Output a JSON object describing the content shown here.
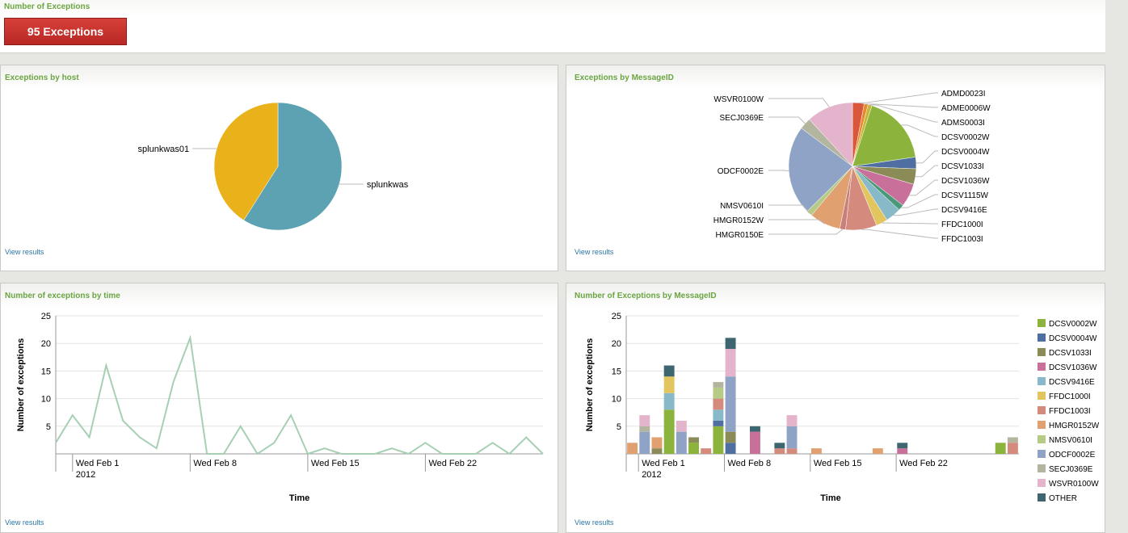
{
  "header": {
    "title": "Number of Exceptions",
    "badge": "95 Exceptions"
  },
  "panels": {
    "host": {
      "title": "Exceptions by host",
      "view_results": "View results"
    },
    "msgid_pie": {
      "title": "Exceptions by MessageID",
      "view_results": "View results"
    },
    "time": {
      "title": "Number of exceptions by time",
      "view_results": "View results"
    },
    "msgid_bar": {
      "title": "Number of Exceptions by MessageID",
      "view_results": "View results"
    }
  },
  "chart_data": [
    {
      "type": "pie",
      "title": "Exceptions by host",
      "labels": [
        "splunkwas",
        "splunkwas01"
      ],
      "values": [
        59,
        41
      ],
      "colors": [
        "#5da2b2",
        "#eab21a"
      ]
    },
    {
      "type": "pie",
      "title": "Exceptions by MessageID",
      "labels": [
        "ADMD0023I",
        "ADME0006W",
        "ADMS0003I",
        "DCSV0002W",
        "DCSV0004W",
        "DCSV1033I",
        "DCSV1036W",
        "DCSV1115W",
        "DCSV9416E",
        "FFDC1000I",
        "FFDC1003I",
        "HMGR0150E",
        "HMGR0152W",
        "NMSV0610I",
        "ODCF0002E",
        "SECJ0369E",
        "WSVR0100W"
      ],
      "values": [
        3,
        1,
        1,
        18,
        3,
        4,
        6,
        1.5,
        4,
        3,
        8,
        1.5,
        8,
        1.5,
        23,
        3,
        12
      ],
      "colors": [
        "#d9573a",
        "#e8892e",
        "#c7b53a",
        "#8cb43c",
        "#4f6fa3",
        "#8b8b57",
        "#c8709a",
        "#4a9a7a",
        "#88b9c8",
        "#e3c560",
        "#d48a7c",
        "#c9807a",
        "#e0a070",
        "#b6cb86",
        "#8ea3c6",
        "#b4b59e",
        "#e4b4cc"
      ]
    },
    {
      "type": "line",
      "title": "Number of exceptions by time",
      "xlabel": "Time",
      "ylabel": "Number of exceptions",
      "ylim": [
        0,
        25
      ],
      "yticks": [
        5,
        10,
        15,
        20,
        25
      ],
      "xticks": [
        "Wed Feb 1",
        "Wed Feb 8",
        "Wed Feb 15",
        "Wed Feb 22"
      ],
      "xsub": "2012",
      "x": [
        "Jan 31",
        "Feb 1",
        "Feb 2",
        "Feb 3",
        "Feb 4",
        "Feb 5",
        "Feb 6",
        "Feb 7",
        "Feb 8",
        "Feb 9",
        "Feb 10",
        "Feb 11",
        "Feb 12",
        "Feb 13",
        "Feb 14",
        "Feb 15",
        "Feb 16",
        "Feb 17",
        "Feb 18",
        "Feb 19",
        "Feb 20",
        "Feb 21",
        "Feb 22",
        "Feb 23",
        "Feb 24",
        "Feb 25",
        "Feb 26",
        "Feb 27",
        "Feb 28",
        "Feb 29"
      ],
      "values": [
        2,
        7,
        3,
        16,
        6,
        3,
        1,
        13,
        21,
        0,
        0,
        5,
        0,
        2,
        7,
        0,
        1,
        0,
        0,
        0,
        1,
        0,
        2,
        0,
        0,
        0,
        2,
        0,
        3,
        0
      ],
      "color": "#a6d0b4"
    },
    {
      "type": "bar",
      "stacked": true,
      "title": "Number of Exceptions by MessageID",
      "xlabel": "Time",
      "ylabel": "Number of exceptions",
      "ylim": [
        0,
        25
      ],
      "yticks": [
        5,
        10,
        15,
        20,
        25
      ],
      "xticks": [
        "Wed Feb 1",
        "Wed Feb 8",
        "Wed Feb 15",
        "Wed Feb 22"
      ],
      "xsub": "2012",
      "legend_position": "right",
      "series": [
        {
          "name": "DCSV0002W",
          "color": "#8cb43c",
          "values": [
            0,
            0,
            0,
            8,
            0,
            2,
            0,
            5,
            0,
            0,
            0,
            0,
            0,
            0,
            0,
            0,
            0,
            0,
            0,
            0,
            0,
            0,
            0,
            0,
            0,
            0,
            0,
            0,
            0,
            0,
            2,
            0
          ]
        },
        {
          "name": "DCSV0004W",
          "color": "#4f6fa3",
          "values": [
            0,
            0,
            0,
            0,
            0,
            0,
            0,
            1,
            2,
            0,
            0,
            0,
            0,
            0,
            0,
            0,
            0,
            0,
            0,
            0,
            0,
            0,
            0,
            0,
            0,
            0,
            0,
            0,
            0,
            0,
            0,
            0
          ]
        },
        {
          "name": "DCSV1033I",
          "color": "#8b8b57",
          "values": [
            0,
            0,
            1,
            0,
            0,
            1,
            0,
            0,
            2,
            0,
            0,
            0,
            0,
            0,
            0,
            0,
            0,
            0,
            0,
            0,
            0,
            0,
            0,
            0,
            0,
            0,
            0,
            0,
            0,
            0,
            0,
            0
          ]
        },
        {
          "name": "DCSV1036W",
          "color": "#c8709a",
          "values": [
            0,
            0,
            0,
            0,
            0,
            0,
            0,
            0,
            0,
            0,
            4,
            0,
            0,
            0,
            0,
            0,
            0,
            0,
            0,
            0,
            0,
            0,
            1,
            0,
            0,
            0,
            0,
            0,
            0,
            0,
            0,
            0
          ]
        },
        {
          "name": "DCSV9416E",
          "color": "#88b9c8",
          "values": [
            0,
            0,
            0,
            3,
            0,
            0,
            0,
            2,
            0,
            0,
            0,
            0,
            0,
            0,
            0,
            0,
            0,
            0,
            0,
            0,
            0,
            0,
            0,
            0,
            0,
            0,
            0,
            0,
            0,
            0,
            0,
            0
          ]
        },
        {
          "name": "FFDC1000I",
          "color": "#e3c560",
          "values": [
            0,
            0,
            0,
            3,
            0,
            0,
            0,
            0,
            0,
            0,
            0,
            0,
            0,
            0,
            0,
            0,
            0,
            0,
            0,
            0,
            0,
            0,
            0,
            0,
            0,
            0,
            0,
            0,
            0,
            0,
            0,
            0
          ]
        },
        {
          "name": "FFDC1003I",
          "color": "#d48a7c",
          "values": [
            0,
            0,
            0,
            0,
            0,
            0,
            1,
            2,
            0,
            0,
            0,
            0,
            1,
            1,
            0,
            0,
            0,
            0,
            0,
            0,
            0,
            0,
            0,
            0,
            0,
            0,
            0,
            0,
            0,
            0,
            0,
            2
          ]
        },
        {
          "name": "HMGR0152W",
          "color": "#e0a070",
          "values": [
            2,
            0,
            2,
            0,
            0,
            0,
            0,
            0,
            0,
            0,
            0,
            0,
            0,
            0,
            0,
            1,
            0,
            0,
            0,
            0,
            1,
            0,
            0,
            0,
            0,
            0,
            0,
            0,
            0,
            0,
            0,
            0
          ]
        },
        {
          "name": "NMSV0610I",
          "color": "#b6cb86",
          "values": [
            0,
            0,
            0,
            0,
            0,
            0,
            0,
            2,
            0,
            0,
            0,
            0,
            0,
            0,
            0,
            0,
            0,
            0,
            0,
            0,
            0,
            0,
            0,
            0,
            0,
            0,
            0,
            0,
            0,
            0,
            0,
            0
          ]
        },
        {
          "name": "ODCF0002E",
          "color": "#8ea3c6",
          "values": [
            0,
            4,
            0,
            0,
            4,
            0,
            0,
            0,
            10,
            0,
            0,
            0,
            0,
            4,
            0,
            0,
            0,
            0,
            0,
            0,
            0,
            0,
            0,
            0,
            0,
            0,
            0,
            0,
            0,
            0,
            0,
            0
          ]
        },
        {
          "name": "SECJ0369E",
          "color": "#b4b59e",
          "values": [
            0,
            1,
            0,
            0,
            0,
            0,
            0,
            1,
            0,
            0,
            0,
            0,
            0,
            0,
            0,
            0,
            0,
            0,
            0,
            0,
            0,
            0,
            0,
            0,
            0,
            0,
            0,
            0,
            0,
            0,
            0,
            1
          ]
        },
        {
          "name": "WSVR0100W",
          "color": "#e4b4cc",
          "values": [
            0,
            2,
            0,
            0,
            2,
            0,
            0,
            0,
            5,
            0,
            0,
            0,
            0,
            2,
            0,
            0,
            0,
            0,
            0,
            0,
            0,
            0,
            0,
            0,
            0,
            0,
            0,
            0,
            0,
            0,
            0,
            0
          ]
        },
        {
          "name": "OTHER",
          "color": "#3d6670",
          "values": [
            0,
            0,
            0,
            2,
            0,
            0,
            0,
            0,
            2,
            0,
            1,
            0,
            1,
            0,
            0,
            0,
            0,
            0,
            0,
            0,
            0,
            0,
            1,
            0,
            0,
            0,
            0,
            0,
            0,
            0,
            0,
            0
          ]
        }
      ]
    }
  ]
}
